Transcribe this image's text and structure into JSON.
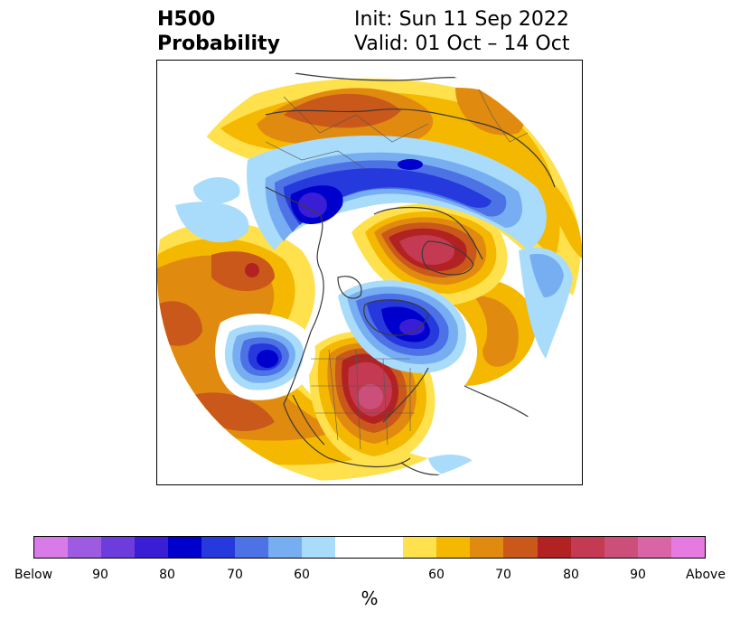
{
  "title": {
    "left_line1": "H500",
    "left_line2": "Probability",
    "right_line1": "Init: Sun 11 Sep 2022",
    "right_line2": "Valid: 01 Oct – 14 Oct"
  },
  "colorbar": {
    "unit": "%",
    "swatches": [
      "#d97ae9",
      "#9d5be2",
      "#6c3cdc",
      "#3a1ed5",
      "#0000cc",
      "#2639dc",
      "#4c72e6",
      "#77aef2",
      "#a9dbfb",
      "#ffffff",
      "#ffe14d",
      "#f5b800",
      "#e08b10",
      "#c9581a",
      "#b32222",
      "#c33a52",
      "#cc4f7a",
      "#d964a6",
      "#e67ae0"
    ],
    "labels": [
      "Below",
      "90",
      "80",
      "70",
      "60",
      "60",
      "70",
      "80",
      "90",
      "Above"
    ]
  }
}
